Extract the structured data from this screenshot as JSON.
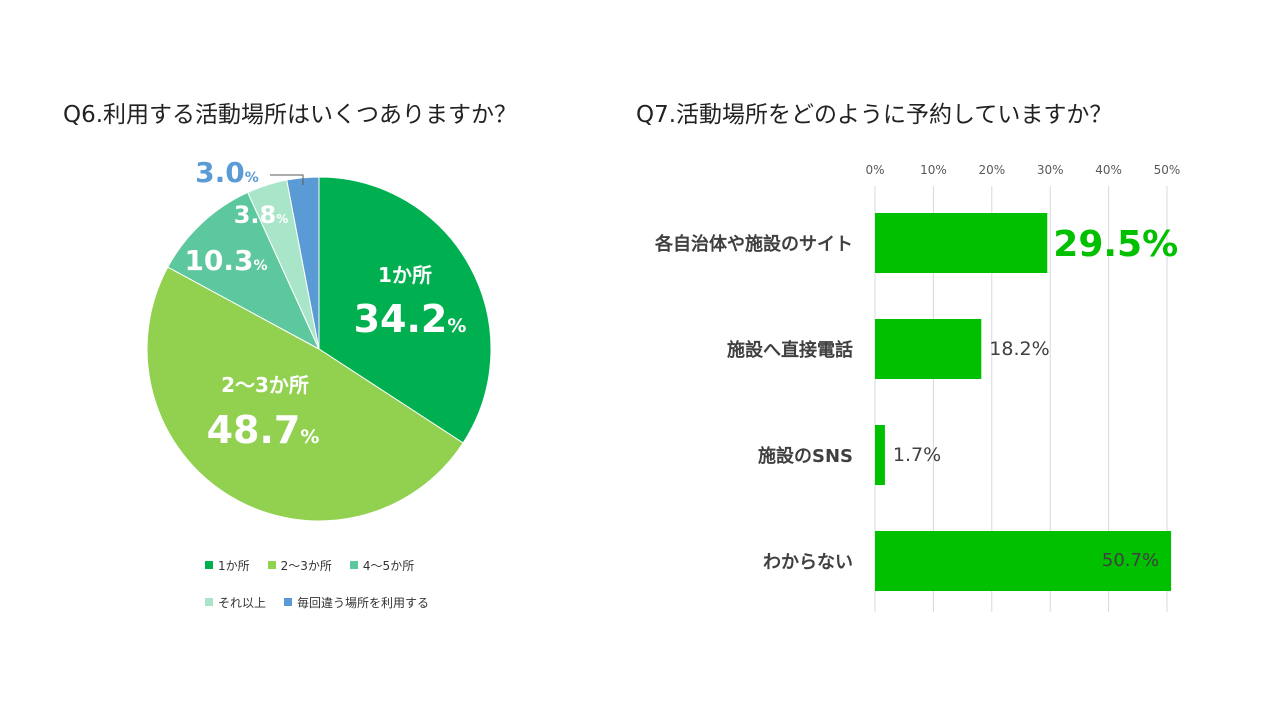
{
  "colors": {
    "pie": [
      "#00b050",
      "#92d050",
      "#5dc79e",
      "#a9e5c9",
      "#5b9bd5"
    ],
    "bar": "#00c000",
    "highlight": "#00c000",
    "grid": "#d9d9d9",
    "axis_text": "#595959"
  },
  "chart_data": [
    {
      "type": "pie",
      "title": "Q6.利用する活動場所はいくつありますか？",
      "categories": [
        "1か所",
        "2〜3か所",
        "4〜5か所",
        "それ以上",
        "毎回違う場所を利用する"
      ],
      "values": [
        34.2,
        48.7,
        10.3,
        3.8,
        3.0
      ],
      "labels": [
        {
          "name": "1か所",
          "value": "34.2",
          "unit": "%"
        },
        {
          "name": "2〜3か所",
          "value": "48.7",
          "unit": "%"
        },
        {
          "name": "",
          "value": "10.3",
          "unit": "%"
        },
        {
          "name": "",
          "value": "3.8",
          "unit": "%"
        },
        {
          "name": "",
          "value": "3.0",
          "unit": "%"
        }
      ],
      "legend": [
        {
          "label": "1か所"
        },
        {
          "label": "2〜3か所"
        },
        {
          "label": "4〜5か所"
        },
        {
          "label": "それ以上"
        },
        {
          "label": "毎回違う場所を利用する"
        }
      ],
      "legend_position": "bottom"
    },
    {
      "type": "bar",
      "orientation": "horizontal",
      "title": "Q7.活動場所をどのように予約していますか？",
      "categories": [
        "各自治体や施設のサイト",
        "施設へ直接電話",
        "施設のSNS",
        "わからない"
      ],
      "values": [
        29.5,
        18.2,
        1.7,
        50.7
      ],
      "value_labels": [
        "29.5%",
        "18.2%",
        "1.7%",
        "50.7%"
      ],
      "xlim": [
        0,
        50
      ],
      "ticks": [
        "0%",
        "10%",
        "20%",
        "30%",
        "40%",
        "50%"
      ],
      "grid": true
    }
  ]
}
